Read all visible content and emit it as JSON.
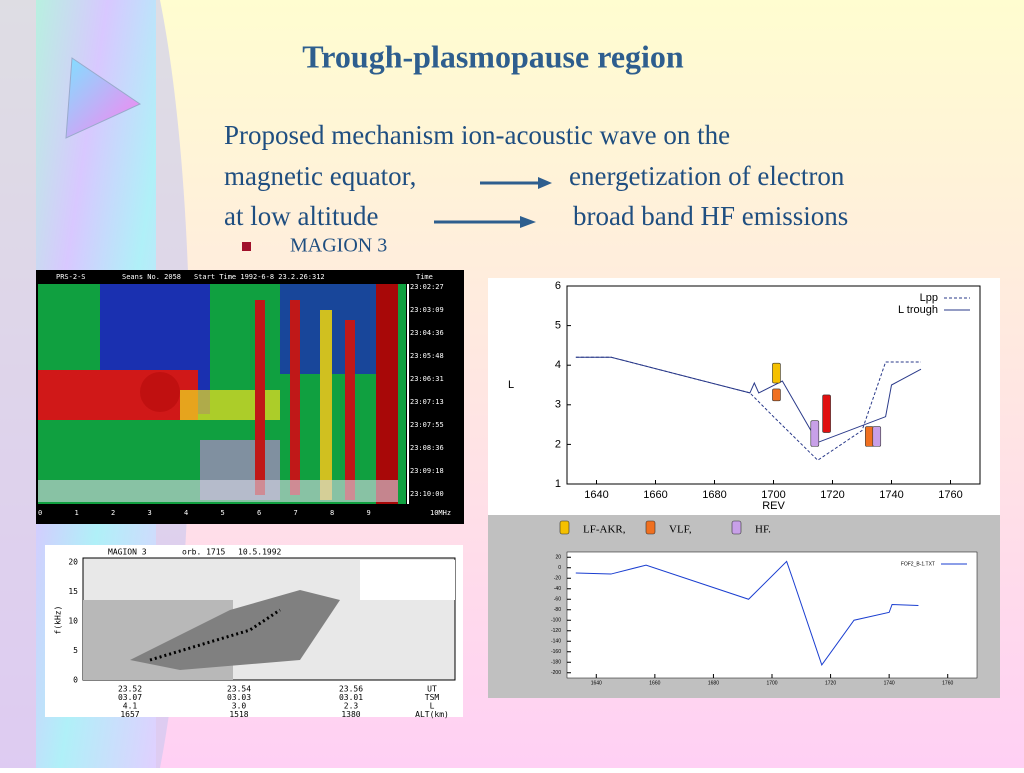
{
  "slide": {
    "title": "Trough-plasmopause region",
    "body": [
      "Proposed mechanism ion-acoustic wave on the",
      "magnetic equator,",
      "energetization of electron",
      "at low altitude",
      "broad band HF emissions"
    ],
    "bullet": "MAGION 3"
  },
  "spectrogram_1": {
    "header": [
      "PRS-2-S",
      "Seans No. 2058",
      "Start Time 1992-6-8 23.2.26:312",
      "Time"
    ],
    "times": [
      "23:02:27",
      "23:03:09",
      "23:04:36",
      "23:05:48",
      "23:06:31",
      "23:07:13",
      "23:07:55",
      "23:08:36",
      "23:09:18",
      "23:10:00"
    ],
    "freq_labels": [
      "0",
      "1",
      "2",
      "3",
      "4",
      "5",
      "6",
      "7",
      "8",
      "9",
      "10MHz"
    ]
  },
  "spectrogram_2": {
    "header": [
      "MAGION 3",
      "orb. 1715",
      "10.5.1992"
    ],
    "ylabel": "f(kHz)",
    "yticks": [
      "20",
      "15",
      "10",
      "5",
      "0"
    ],
    "table": [
      [
        "23.52",
        "23.54",
        "23.56",
        "UT"
      ],
      [
        "03.07",
        "03.03",
        "03.01",
        "TSM"
      ],
      [
        "4.1",
        "3.0",
        "2.3",
        "L"
      ],
      [
        "1657",
        "1518",
        "1380",
        "ALT(km)"
      ]
    ]
  },
  "chart_data": [
    {
      "type": "line",
      "xlabel": "REV",
      "ylabel": "L",
      "xlim": [
        1630,
        1770
      ],
      "xticks": [
        1640,
        1660,
        1680,
        1700,
        1720,
        1740,
        1760
      ],
      "ylim": [
        1,
        6
      ],
      "yticks": [
        1,
        2,
        3,
        4,
        5,
        6
      ],
      "legend": "upper right",
      "series": [
        {
          "name": "Lpp",
          "color": "#2a3a8a",
          "dash": true,
          "x": [
            1633,
            1645,
            1692,
            1700,
            1715,
            1730,
            1738,
            1750
          ],
          "values": [
            4.2,
            4.2,
            3.3,
            2.7,
            1.6,
            2.35,
            4.08,
            4.08
          ]
        },
        {
          "name": "L trough",
          "color": "#2a3a8a",
          "dash": false,
          "x": [
            1633,
            1645,
            1692,
            1693.5,
            1695,
            1703,
            1715,
            1738,
            1740,
            1750
          ],
          "values": [
            4.2,
            4.2,
            3.3,
            3.55,
            3.3,
            3.6,
            2.05,
            2.7,
            3.5,
            3.9
          ]
        }
      ],
      "intervals": [
        {
          "name": "LF-AKR,",
          "color": "#f5c000",
          "x": [
            1701
          ],
          "low": [
            3.55
          ],
          "high": [
            4.05
          ]
        },
        {
          "name": "VLF,",
          "color": "#f07020",
          "x": [
            1701,
            1732.5
          ],
          "low": [
            3.1,
            1.95
          ],
          "high": [
            3.4,
            2.45
          ]
        },
        {
          "name": "HF.",
          "color": "#c8a0e8",
          "x": [
            1714,
            1735
          ],
          "low": [
            1.95,
            1.95
          ],
          "high": [
            2.6,
            2.45
          ]
        },
        {
          "color": "#e01010",
          "x": [
            1718
          ],
          "low": [
            2.3
          ],
          "high": [
            3.25
          ]
        }
      ]
    },
    {
      "type": "line",
      "xlim": [
        1630,
        1770
      ],
      "xticks": [
        1640,
        1660,
        1680,
        1700,
        1720,
        1740,
        1760
      ],
      "ylim": [
        -210,
        30
      ],
      "yticks": [
        20,
        0,
        -20,
        -40,
        -60,
        -80,
        -100,
        -120,
        -140,
        -160,
        -180,
        -200
      ],
      "legend": "upper right",
      "series": [
        {
          "name": "FOF2_B-1.TXT",
          "color": "#1a3ed0",
          "dash": false,
          "x": [
            1633,
            1645,
            1657,
            1692,
            1705,
            1707,
            1717,
            1728,
            1740,
            1741,
            1750
          ],
          "values": [
            -10,
            -12,
            5,
            -60,
            12,
            -20,
            -185,
            -100,
            -85,
            -70,
            -72
          ]
        }
      ]
    }
  ]
}
